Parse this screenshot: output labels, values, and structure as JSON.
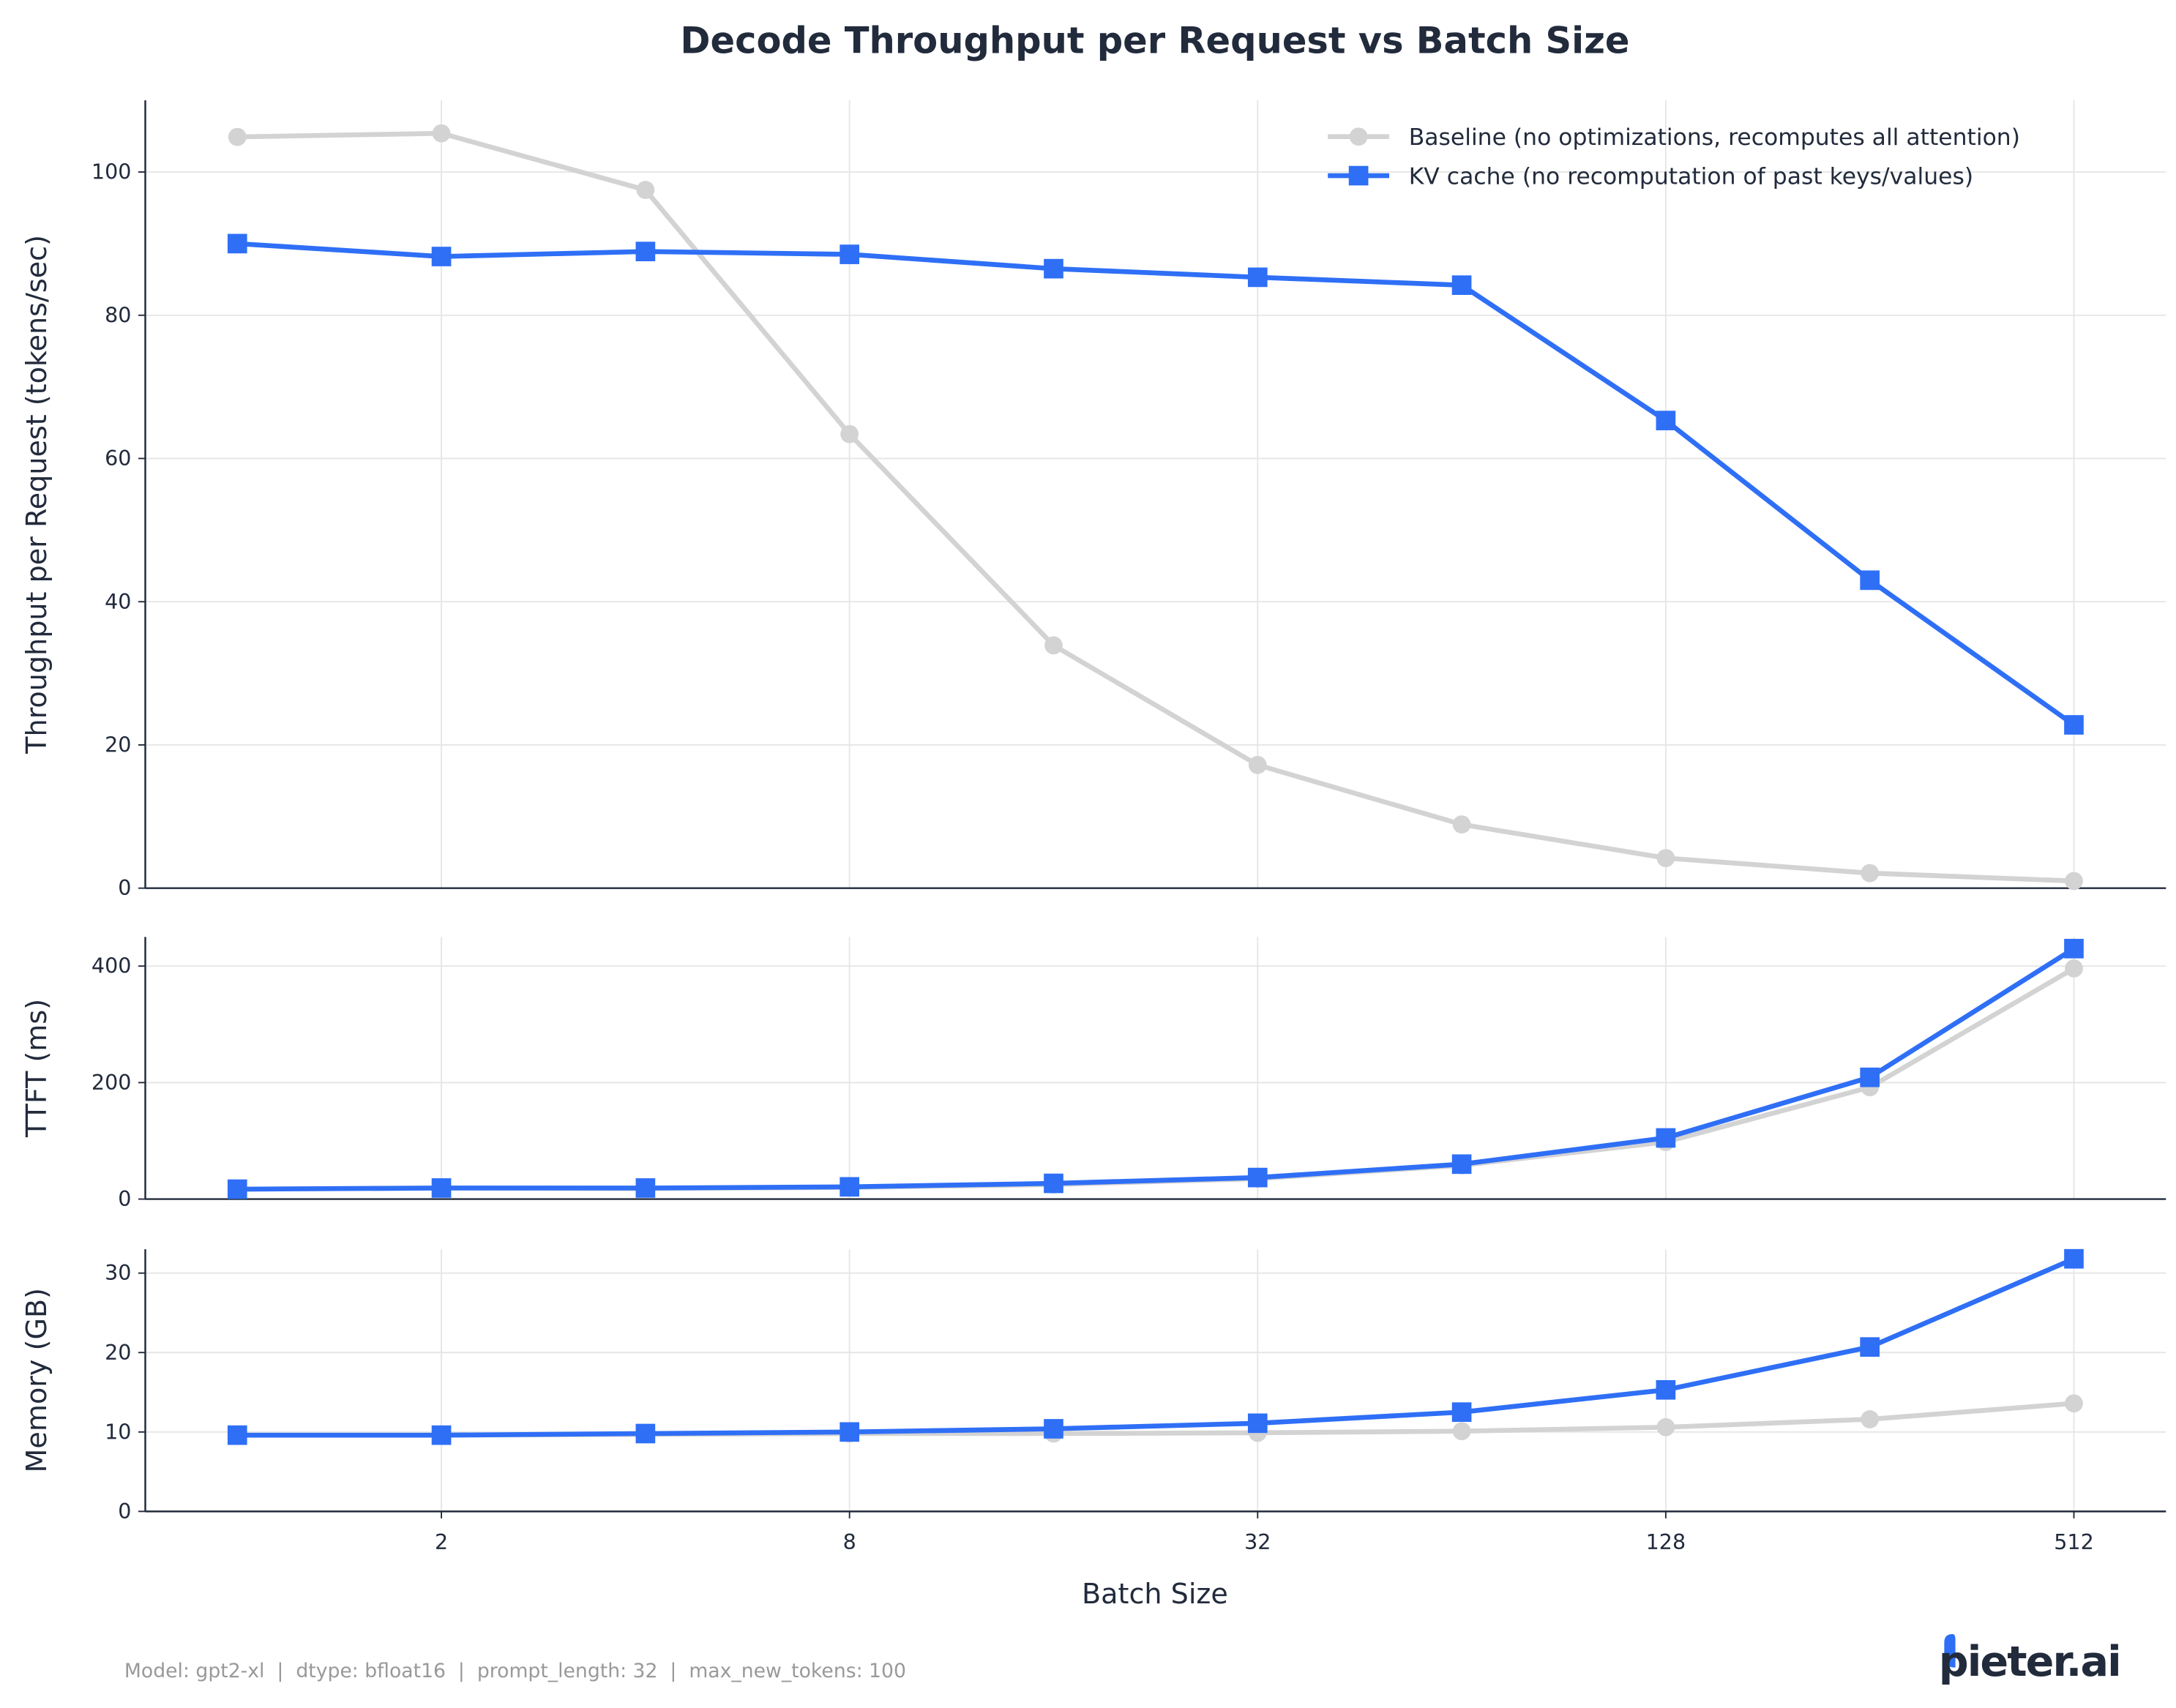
{
  "title": "Decode Throughput per Request vs Batch Size",
  "footer": "Model: gpt2-xl  |  dtype: bfloat16  |  prompt_length: 32  |  max_new_tokens: 100",
  "logo": "pieter.ai",
  "colors": {
    "baseline": "#d3d3d3",
    "kv": "#2f6ff6",
    "text": "#222b3c",
    "grid": "#e6e6e6",
    "footer": "#999999"
  },
  "chart_data": [
    {
      "type": "line",
      "xlabel": "",
      "ylabel": "Throughput per Request (tokens/sec)",
      "x": [
        1,
        2,
        4,
        8,
        16,
        32,
        64,
        128,
        256,
        512
      ],
      "xscale": "log2",
      "ylim": [
        0,
        110
      ],
      "yticks": [
        0,
        20,
        40,
        60,
        80,
        100
      ],
      "grid": true,
      "legend": "top-right",
      "series": [
        {
          "name": "Baseline (no optimizations, recomputes all attention)",
          "marker": "circle",
          "values": [
            104.9,
            105.4,
            97.5,
            63.4,
            33.9,
            17.2,
            8.9,
            4.2,
            2.1,
            1.0
          ]
        },
        {
          "name": "KV cache (no recomputation of past keys/values)",
          "marker": "square",
          "values": [
            90.0,
            88.2,
            88.9,
            88.5,
            86.5,
            85.3,
            84.2,
            65.3,
            43.0,
            22.8
          ]
        }
      ]
    },
    {
      "type": "line",
      "ylabel": "TTFT (ms)",
      "x": [
        1,
        2,
        4,
        8,
        16,
        32,
        64,
        128,
        256,
        512
      ],
      "xscale": "log2",
      "ylim": [
        0,
        450
      ],
      "yticks": [
        0,
        200,
        400
      ],
      "grid": true,
      "series": [
        {
          "marker": "circle",
          "values": [
            17,
            19,
            18,
            20,
            25,
            35,
            58,
            98,
            192,
            396
          ]
        },
        {
          "marker": "square",
          "values": [
            17,
            19,
            19,
            21,
            27,
            37,
            60,
            105,
            209,
            430
          ]
        }
      ]
    },
    {
      "type": "line",
      "xlabel": "Batch Size",
      "ylabel": "Memory (GB)",
      "x": [
        1,
        2,
        4,
        8,
        16,
        32,
        64,
        128,
        256,
        512
      ],
      "xscale": "log2",
      "xticks": [
        2,
        8,
        32,
        128,
        512
      ],
      "ylim": [
        0,
        33
      ],
      "yticks": [
        0,
        10,
        20,
        30
      ],
      "grid": true,
      "series": [
        {
          "marker": "circle",
          "values": [
            9.6,
            9.6,
            9.7,
            9.8,
            9.8,
            9.9,
            10.1,
            10.6,
            11.6,
            13.6
          ]
        },
        {
          "marker": "square",
          "values": [
            9.6,
            9.6,
            9.8,
            10.0,
            10.4,
            11.1,
            12.5,
            15.3,
            20.7,
            31.8
          ]
        }
      ]
    }
  ]
}
